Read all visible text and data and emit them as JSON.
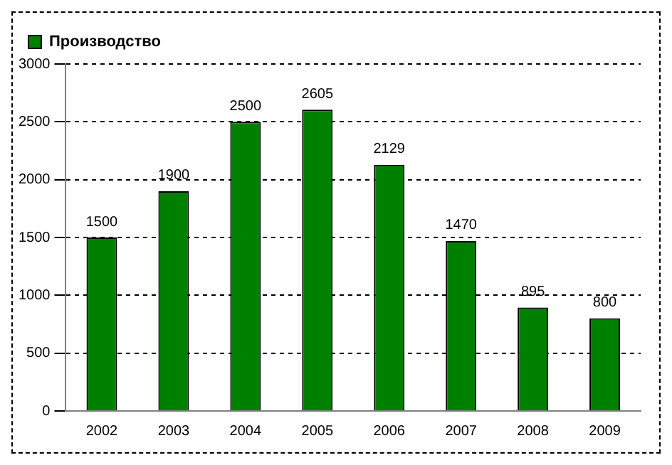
{
  "chart_data": {
    "type": "bar",
    "categories": [
      "2002",
      "2003",
      "2004",
      "2005",
      "2006",
      "2007",
      "2008",
      "2009"
    ],
    "series": [
      {
        "name": "Производство",
        "color": "#008000",
        "values": [
          1500,
          1900,
          2500,
          2605,
          2129,
          1470,
          895,
          800
        ]
      }
    ],
    "ylim": [
      0,
      3000
    ],
    "yticks": [
      0,
      500,
      1000,
      1500,
      2000,
      2500,
      3000
    ],
    "grid": "y",
    "legend": "top left",
    "data_labels": true
  }
}
